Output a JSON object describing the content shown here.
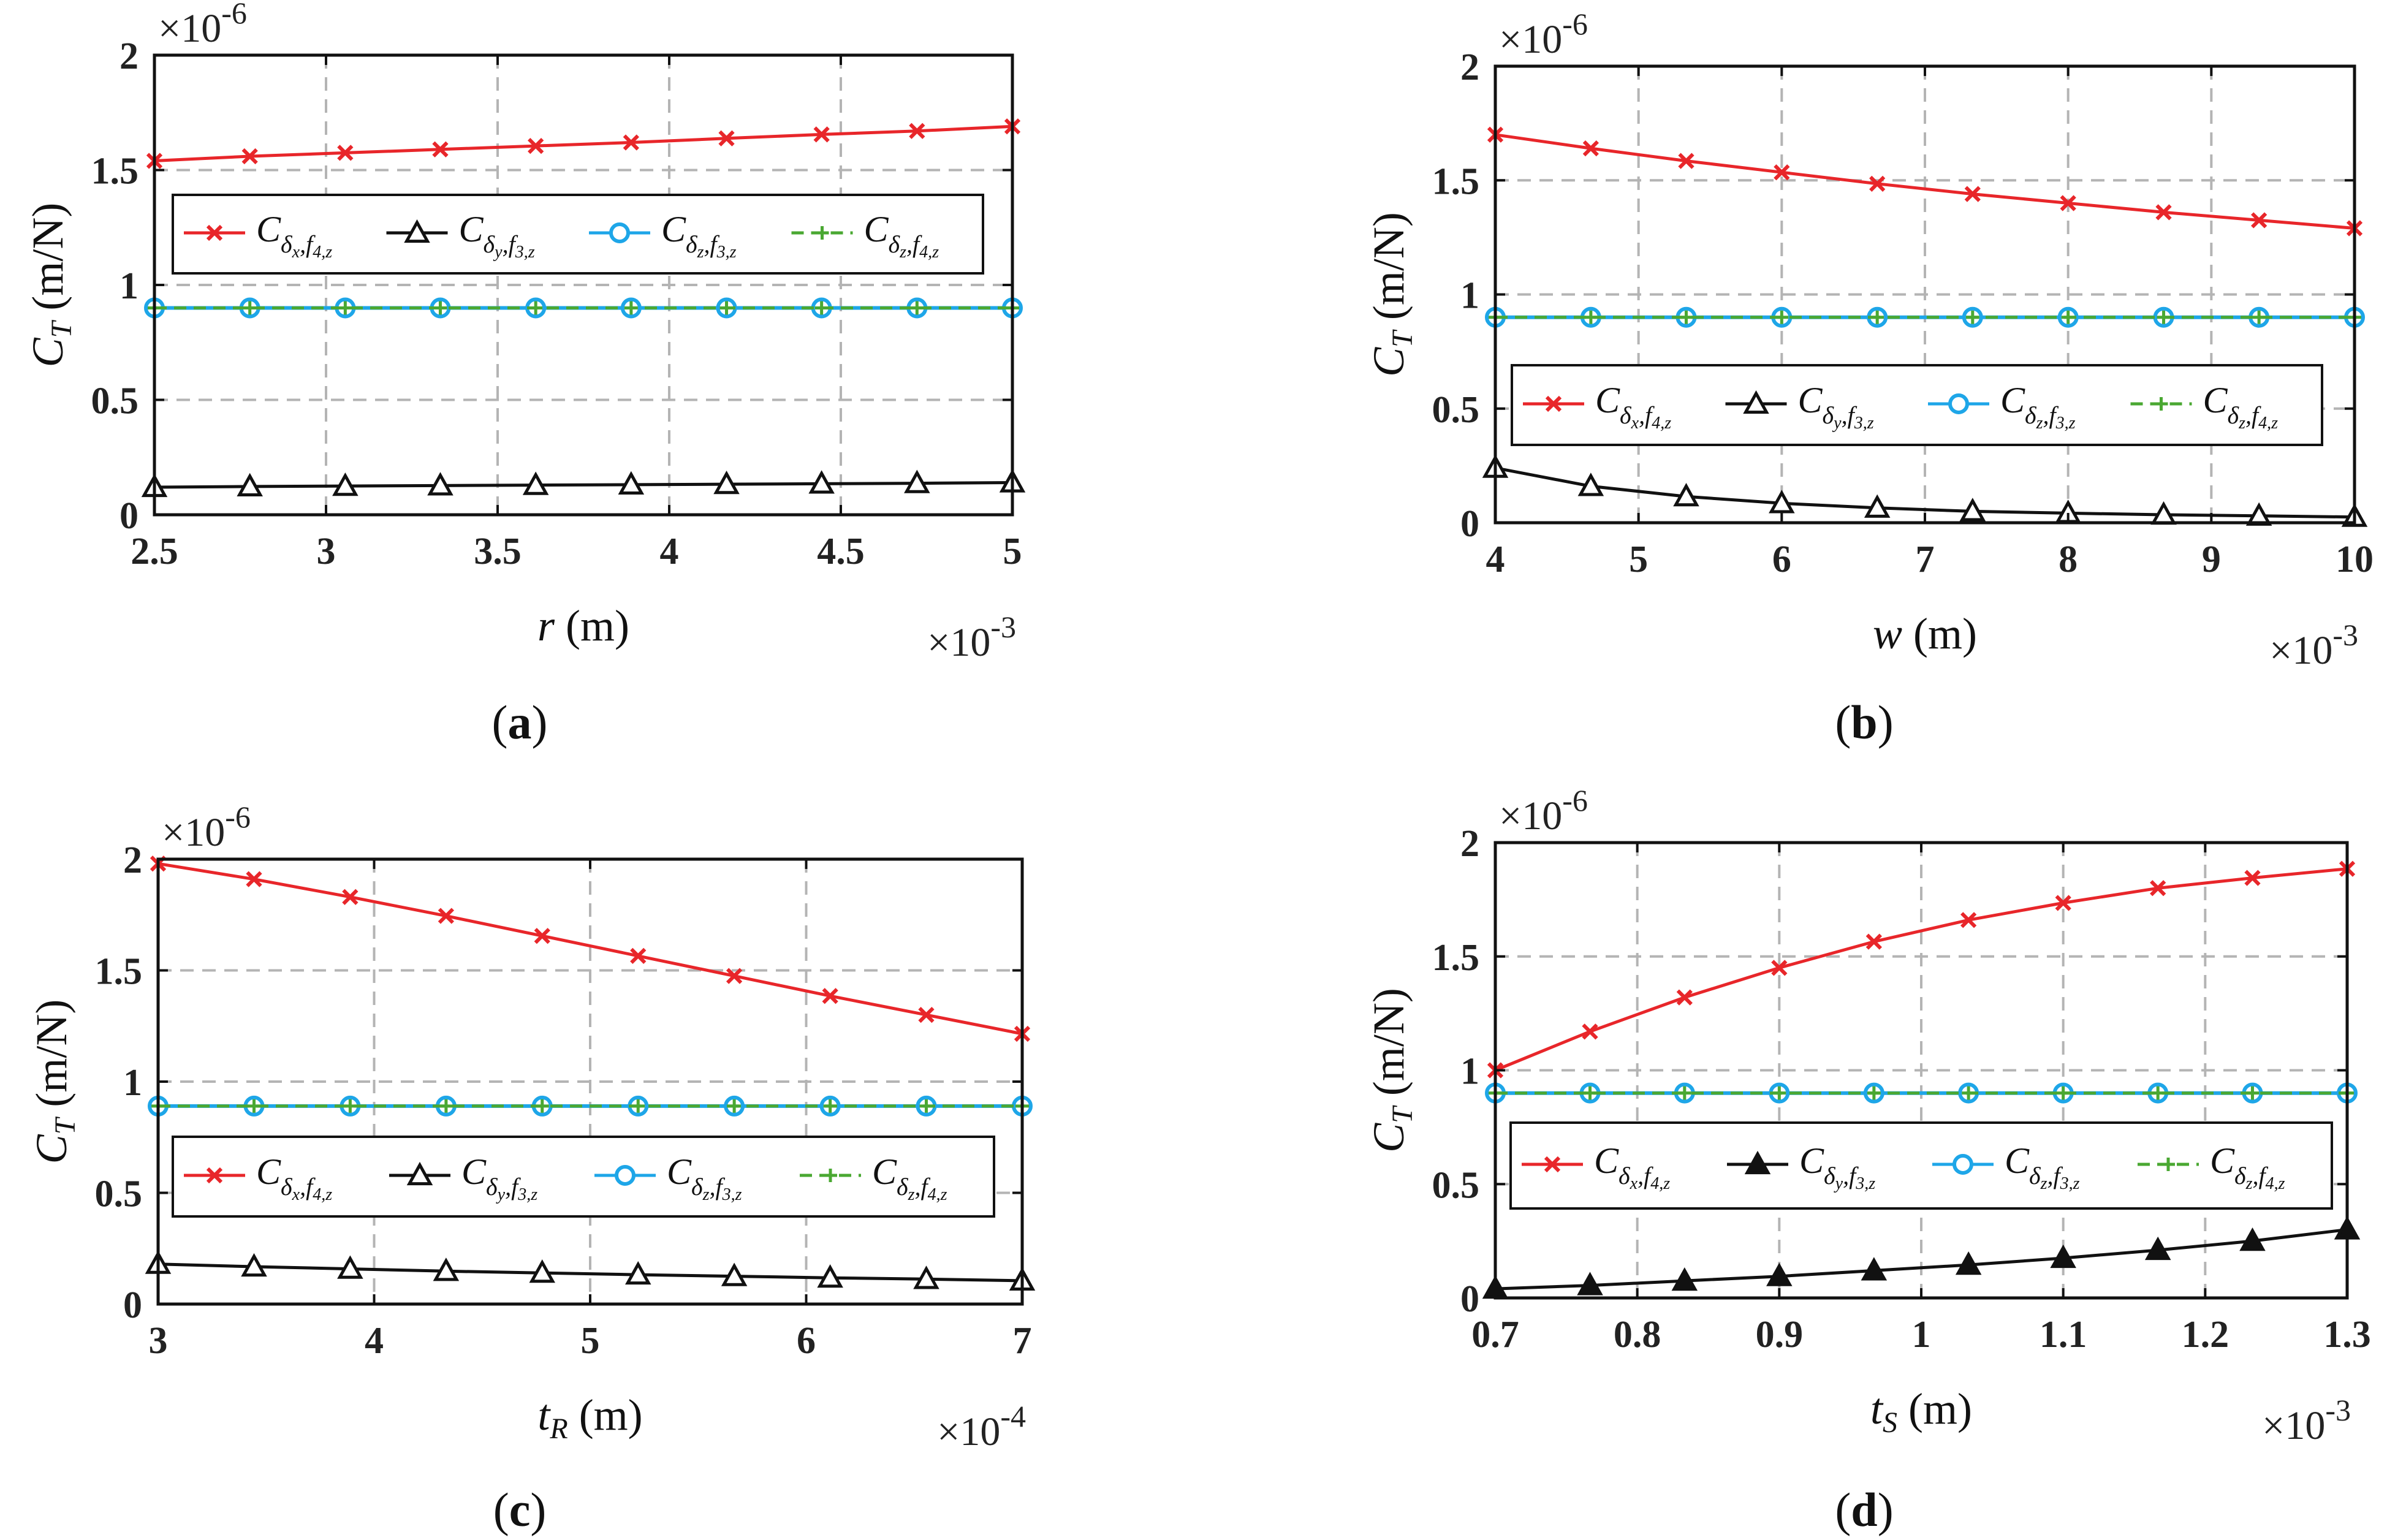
{
  "colors": {
    "red": "#e8262a",
    "black": "#111111",
    "blue": "#1ea6e8",
    "green": "#4aa832",
    "grid": "#b4b4b4"
  },
  "legend": [
    {
      "symbol": "C",
      "sub": "δ",
      "subsub": "x",
      "tail": ",f",
      "tailsub": "4,z",
      "color": "red",
      "marker": "x",
      "dash": false
    },
    {
      "symbol": "C",
      "sub": "δ",
      "subsub": "y",
      "tail": ",f",
      "tailsub": "3,z",
      "color": "black",
      "marker": "tri",
      "dash": false
    },
    {
      "symbol": "C",
      "sub": "δ",
      "subsub": "z",
      "tail": ",f",
      "tailsub": "3,z",
      "color": "blue",
      "marker": "circle",
      "dash": false
    },
    {
      "symbol": "C",
      "sub": "δ",
      "subsub": "z",
      "tail": ",f",
      "tailsub": "4,z",
      "color": "green",
      "marker": "plus",
      "dash": true
    }
  ],
  "chart_data": [
    {
      "id": "a",
      "type": "line",
      "caption": "a",
      "ylabel": "C_T (m/N)",
      "ylabel_main": "C",
      "ylabel_sub": "T",
      "ylabel_unit": "(m/N)",
      "y_multiplier": "×10",
      "y_exp": "-6",
      "ylim": [
        0,
        2
      ],
      "yticks": [
        "0",
        "0.5",
        "1",
        "1.5",
        "2"
      ],
      "ytick_values": [
        0,
        0.5,
        1,
        1.5,
        2
      ],
      "xlabel_var": "r",
      "xlabel_sub": "",
      "xlabel_unit": "(m)",
      "x_multiplier": "×10",
      "x_exp": "-3",
      "xlim": [
        2.5,
        5
      ],
      "xticks": [
        "2.5",
        "3",
        "3.5",
        "4",
        "4.5",
        "5"
      ],
      "xtick_values": [
        2.5,
        3,
        3.5,
        4,
        4.5,
        5
      ],
      "legend_position": "upper-middle",
      "triangle_filled": false,
      "x": [
        2.5,
        2.778,
        3.056,
        3.333,
        3.611,
        3.889,
        4.167,
        4.444,
        4.722,
        5.0
      ],
      "series": [
        {
          "name": "C_δx,f4,z",
          "values": [
            1.54,
            1.56,
            1.575,
            1.59,
            1.605,
            1.62,
            1.638,
            1.655,
            1.67,
            1.69
          ]
        },
        {
          "name": "C_δy,f3,z",
          "values": [
            0.12,
            0.123,
            0.125,
            0.127,
            0.129,
            0.131,
            0.133,
            0.135,
            0.137,
            0.14
          ]
        },
        {
          "name": "C_δz,f3,z",
          "values": [
            0.9,
            0.9,
            0.9,
            0.9,
            0.9,
            0.9,
            0.9,
            0.9,
            0.9,
            0.9
          ]
        },
        {
          "name": "C_δz,f4,z",
          "values": [
            0.9,
            0.9,
            0.9,
            0.9,
            0.9,
            0.9,
            0.9,
            0.9,
            0.9,
            0.9
          ]
        }
      ]
    },
    {
      "id": "b",
      "type": "line",
      "caption": "b",
      "ylabel": "C_T (m/N)",
      "ylabel_main": "C",
      "ylabel_sub": "T",
      "ylabel_unit": "(m/N)",
      "y_multiplier": "×10",
      "y_exp": "-6",
      "ylim": [
        0,
        2
      ],
      "yticks": [
        "0",
        "0.5",
        "1",
        "1.5",
        "2"
      ],
      "ytick_values": [
        0,
        0.5,
        1,
        1.5,
        2
      ],
      "xlabel_var": "w",
      "xlabel_sub": "",
      "xlabel_unit": "(m)",
      "x_multiplier": "×10",
      "x_exp": "-3",
      "xlim": [
        4,
        10
      ],
      "xticks": [
        "4",
        "5",
        "6",
        "7",
        "8",
        "9",
        "10"
      ],
      "xtick_values": [
        4,
        5,
        6,
        7,
        8,
        9,
        10
      ],
      "legend_position": "lower-middle",
      "triangle_filled": false,
      "x": [
        4.0,
        4.667,
        5.333,
        6.0,
        6.667,
        7.333,
        8.0,
        8.667,
        9.333,
        10.0
      ],
      "series": [
        {
          "name": "C_δx,f4,z",
          "values": [
            1.7,
            1.64,
            1.585,
            1.535,
            1.485,
            1.44,
            1.4,
            1.36,
            1.325,
            1.29
          ]
        },
        {
          "name": "C_δy,f3,z",
          "values": [
            0.24,
            0.16,
            0.115,
            0.085,
            0.065,
            0.05,
            0.042,
            0.035,
            0.03,
            0.025
          ]
        },
        {
          "name": "C_δz,f3,z",
          "values": [
            0.9,
            0.9,
            0.9,
            0.9,
            0.9,
            0.9,
            0.9,
            0.9,
            0.9,
            0.9
          ]
        },
        {
          "name": "C_δz,f4,z",
          "values": [
            0.9,
            0.9,
            0.9,
            0.9,
            0.9,
            0.9,
            0.9,
            0.9,
            0.9,
            0.9
          ]
        }
      ]
    },
    {
      "id": "c",
      "type": "line",
      "caption": "c",
      "ylabel": "C_T (m/N)",
      "ylabel_main": "C",
      "ylabel_sub": "T",
      "ylabel_unit": "(m/N)",
      "y_multiplier": "×10",
      "y_exp": "-6",
      "ylim": [
        0,
        2
      ],
      "yticks": [
        "0",
        "0.5",
        "1",
        "1.5",
        "2"
      ],
      "ytick_values": [
        0,
        0.5,
        1,
        1.5,
        2
      ],
      "xlabel_var": "t",
      "xlabel_sub": "R",
      "xlabel_unit": "(m)",
      "x_multiplier": "×10",
      "x_exp": "-4",
      "xlim": [
        3,
        7
      ],
      "xticks": [
        "3",
        "4",
        "5",
        "6",
        "7"
      ],
      "xtick_values": [
        3,
        4,
        5,
        6,
        7
      ],
      "legend_position": "lower-middle",
      "triangle_filled": false,
      "x": [
        3.0,
        3.444,
        3.889,
        4.333,
        4.778,
        5.222,
        5.667,
        6.111,
        6.556,
        7.0
      ],
      "series": [
        {
          "name": "C_δx,f4,z",
          "values": [
            1.98,
            1.91,
            1.83,
            1.745,
            1.655,
            1.565,
            1.475,
            1.385,
            1.3,
            1.215
          ]
        },
        {
          "name": "C_δy,f3,z",
          "values": [
            0.18,
            0.168,
            0.158,
            0.148,
            0.14,
            0.132,
            0.125,
            0.118,
            0.112,
            0.105
          ]
        },
        {
          "name": "C_δz,f3,z",
          "values": [
            0.89,
            0.89,
            0.89,
            0.89,
            0.89,
            0.89,
            0.89,
            0.89,
            0.89,
            0.89
          ]
        },
        {
          "name": "C_δz,f4,z",
          "values": [
            0.89,
            0.89,
            0.89,
            0.89,
            0.89,
            0.89,
            0.89,
            0.89,
            0.89,
            0.89
          ]
        }
      ]
    },
    {
      "id": "d",
      "type": "line",
      "caption": "d",
      "ylabel": "C_T (m/N)",
      "ylabel_main": "C",
      "ylabel_sub": "T",
      "ylabel_unit": "(m/N)",
      "y_multiplier": "×10",
      "y_exp": "-6",
      "ylim": [
        0,
        2
      ],
      "yticks": [
        "0",
        "0.5",
        "1",
        "1.5",
        "2"
      ],
      "ytick_values": [
        0,
        0.5,
        1,
        1.5,
        2
      ],
      "xlabel_var": "t",
      "xlabel_sub": "S",
      "xlabel_unit": "(m)",
      "x_multiplier": "×10",
      "x_exp": "-3",
      "xlim": [
        0.7,
        1.3
      ],
      "xticks": [
        "0.7",
        "0.8",
        "0.9",
        "1",
        "1.1",
        "1.2",
        "1.3"
      ],
      "xtick_values": [
        0.7,
        0.8,
        0.9,
        1.0,
        1.1,
        1.2,
        1.3
      ],
      "legend_position": "lower-middle",
      "triangle_filled": true,
      "x": [
        0.7,
        0.7667,
        0.8333,
        0.9,
        0.9667,
        1.0333,
        1.1,
        1.1667,
        1.2333,
        1.3
      ],
      "series": [
        {
          "name": "C_δx,f4,z",
          "values": [
            1.0,
            1.17,
            1.32,
            1.45,
            1.565,
            1.66,
            1.735,
            1.8,
            1.845,
            1.885
          ]
        },
        {
          "name": "C_δy,f3,z",
          "values": [
            0.04,
            0.055,
            0.075,
            0.095,
            0.12,
            0.145,
            0.175,
            0.21,
            0.25,
            0.3
          ]
        },
        {
          "name": "C_δz,f3,z",
          "values": [
            0.9,
            0.9,
            0.9,
            0.9,
            0.9,
            0.9,
            0.9,
            0.9,
            0.9,
            0.9
          ]
        },
        {
          "name": "C_δz,f4,z",
          "values": [
            0.9,
            0.9,
            0.9,
            0.9,
            0.9,
            0.9,
            0.9,
            0.9,
            0.9,
            0.9
          ]
        }
      ]
    }
  ]
}
